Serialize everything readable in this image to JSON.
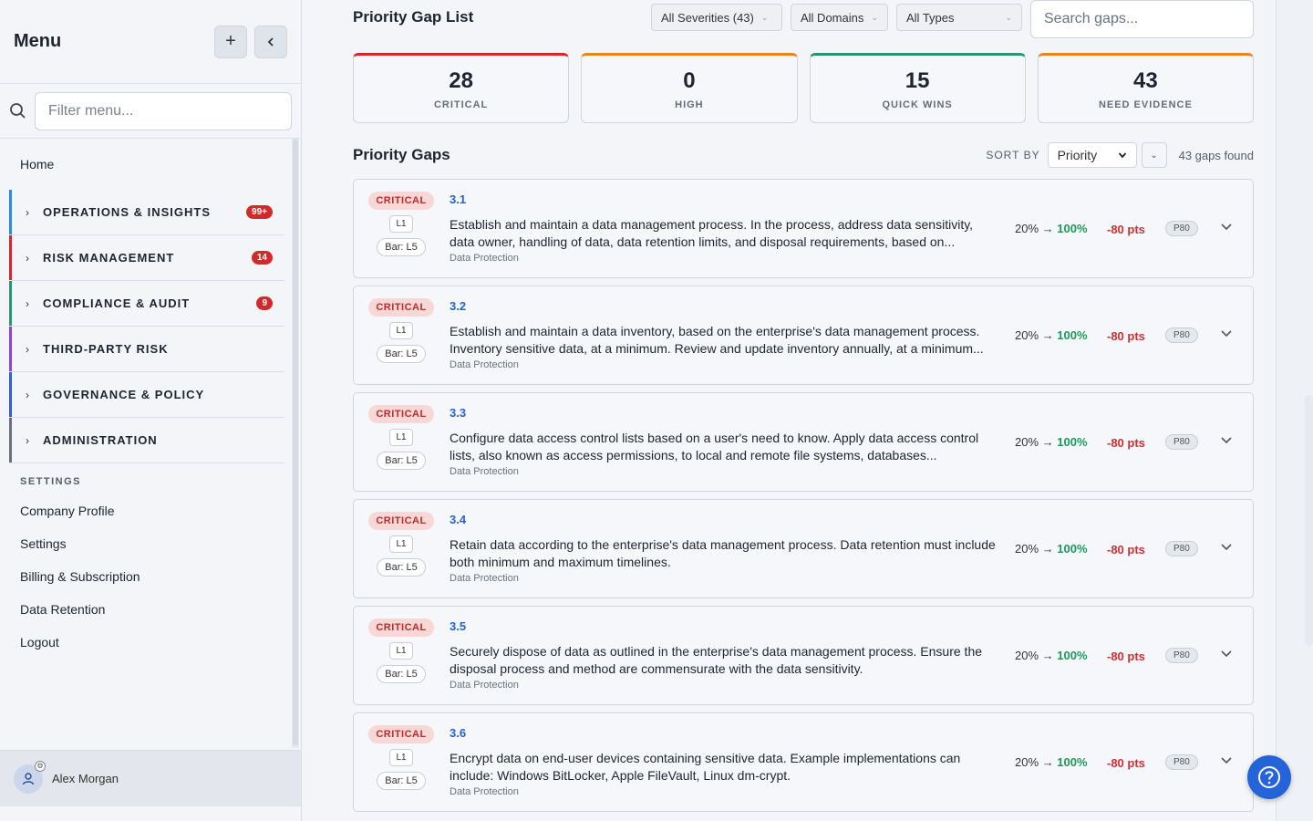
{
  "sidebar": {
    "title": "Menu",
    "filter_placeholder": "Filter menu...",
    "home": "Home",
    "groups": [
      {
        "label": "OPERATIONS & INSIGHTS",
        "badge": "99+",
        "color": "#2b8bd6"
      },
      {
        "label": "RISK MANAGEMENT",
        "badge": "14",
        "color": "#d22a2a"
      },
      {
        "label": "COMPLIANCE & AUDIT",
        "badge": "9",
        "color": "#1f9a68"
      },
      {
        "label": "THIRD-PARTY RISK",
        "badge": "",
        "color": "#8a47c8"
      },
      {
        "label": "GOVERNANCE & POLICY",
        "badge": "",
        "color": "#2f63c8"
      },
      {
        "label": "ADMINISTRATION",
        "badge": "",
        "color": "#6a717d"
      }
    ],
    "settings_heading": "SETTINGS",
    "settings_items": [
      "Company Profile",
      "Settings",
      "Billing & Subscription",
      "Data Retention",
      "Logout"
    ],
    "user_name": "Alex Morgan"
  },
  "main": {
    "title": "Priority Gap List",
    "filters": [
      "All Severities (43)",
      "All Domains",
      "All Types"
    ],
    "search_placeholder": "Search gaps...",
    "stats": [
      {
        "value": "28",
        "label": "CRITICAL",
        "color": "#d22a2a"
      },
      {
        "value": "0",
        "label": "HIGH",
        "color": "#e8861e"
      },
      {
        "value": "15",
        "label": "QUICK WINS",
        "color": "#1f9a68"
      },
      {
        "value": "43",
        "label": "NEED EVIDENCE",
        "color": "#e8861e"
      }
    ],
    "gaps_title": "Priority Gaps",
    "sort_by_label": "SORT BY",
    "sort_value": "Priority",
    "found_text": "43 gaps found",
    "gaps": [
      {
        "severity": "CRITICAL",
        "level": "L1",
        "bar": "Bar: L5",
        "id": "3.1",
        "description": "Establish and maintain a data management process. In the process, address data sensitivity, data owner, handling of data, data retention limits, and disposal requirements, based on...",
        "domain": "Data Protection",
        "from": "20%",
        "arrow": "→",
        "to": "100%",
        "points": "-80 pts",
        "priority": "P80"
      },
      {
        "severity": "CRITICAL",
        "level": "L1",
        "bar": "Bar: L5",
        "id": "3.2",
        "description": "Establish and maintain a data inventory, based on the enterprise's data management process. Inventory sensitive data, at a minimum. Review and update inventory annually, at a minimum...",
        "domain": "Data Protection",
        "from": "20%",
        "arrow": "→",
        "to": "100%",
        "points": "-80 pts",
        "priority": "P80"
      },
      {
        "severity": "CRITICAL",
        "level": "L1",
        "bar": "Bar: L5",
        "id": "3.3",
        "description": "Configure data access control lists based on a user's need to know. Apply data access control lists, also known as access permissions, to local and remote file systems, databases...",
        "domain": "Data Protection",
        "from": "20%",
        "arrow": "→",
        "to": "100%",
        "points": "-80 pts",
        "priority": "P80"
      },
      {
        "severity": "CRITICAL",
        "level": "L1",
        "bar": "Bar: L5",
        "id": "3.4",
        "description": "Retain data according to the enterprise's data management process. Data retention must include both minimum and maximum timelines.",
        "domain": "Data Protection",
        "from": "20%",
        "arrow": "→",
        "to": "100%",
        "points": "-80 pts",
        "priority": "P80"
      },
      {
        "severity": "CRITICAL",
        "level": "L1",
        "bar": "Bar: L5",
        "id": "3.5",
        "description": "Securely dispose of data as outlined in the enterprise's data management process. Ensure the disposal process and method are commensurate with the data sensitivity.",
        "domain": "Data Protection",
        "from": "20%",
        "arrow": "→",
        "to": "100%",
        "points": "-80 pts",
        "priority": "P80"
      },
      {
        "severity": "CRITICAL",
        "level": "L1",
        "bar": "Bar: L5",
        "id": "3.6",
        "description": "Encrypt data on end-user devices containing sensitive data. Example implementations can include: Windows BitLocker, Apple FileVault, Linux dm-crypt.",
        "domain": "Data Protection",
        "from": "20%",
        "arrow": "→",
        "to": "100%",
        "points": "-80 pts",
        "priority": "P80"
      }
    ]
  }
}
